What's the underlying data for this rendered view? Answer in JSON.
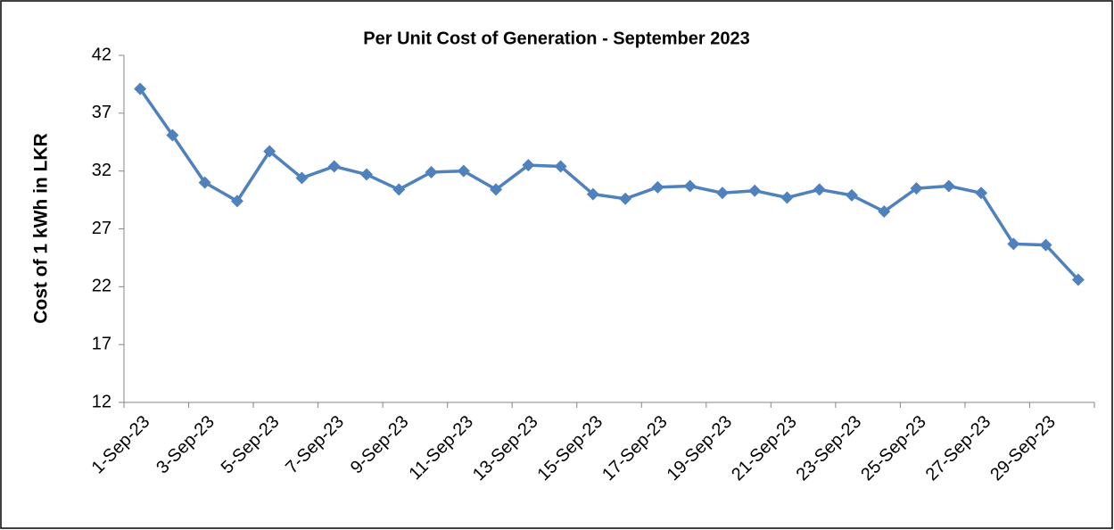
{
  "chart_data": {
    "type": "line",
    "title": "Per Unit Cost of Generation - September 2023",
    "y_label": "Cost of  1 kWh in LKR",
    "categories": [
      "1-Sep-23",
      null,
      "3-Sep-23",
      null,
      "5-Sep-23",
      null,
      "7-Sep-23",
      null,
      "9-Sep-23",
      null,
      "11-Sep-23",
      null,
      "13-Sep-23",
      null,
      "15-Sep-23",
      null,
      "17-Sep-23",
      null,
      "19-Sep-23",
      null,
      "21-Sep-23",
      null,
      "23-Sep-23",
      null,
      "25-Sep-23",
      null,
      "27-Sep-23",
      null,
      "29-Sep-23",
      null
    ],
    "series": [
      {
        "name": "Cost",
        "color": "#4f81bd",
        "values": [
          39.1,
          35.1,
          31.0,
          29.4,
          33.7,
          31.4,
          32.4,
          31.7,
          30.4,
          31.9,
          32.0,
          30.4,
          32.5,
          32.4,
          30.0,
          29.6,
          30.6,
          30.7,
          30.1,
          30.3,
          29.7,
          30.4,
          29.9,
          28.5,
          30.5,
          30.7,
          30.1,
          25.7,
          25.6,
          22.6
        ]
      }
    ],
    "ylim": [
      12,
      42
    ],
    "yticks": [
      12,
      17,
      22,
      27,
      32,
      37,
      42
    ]
  }
}
